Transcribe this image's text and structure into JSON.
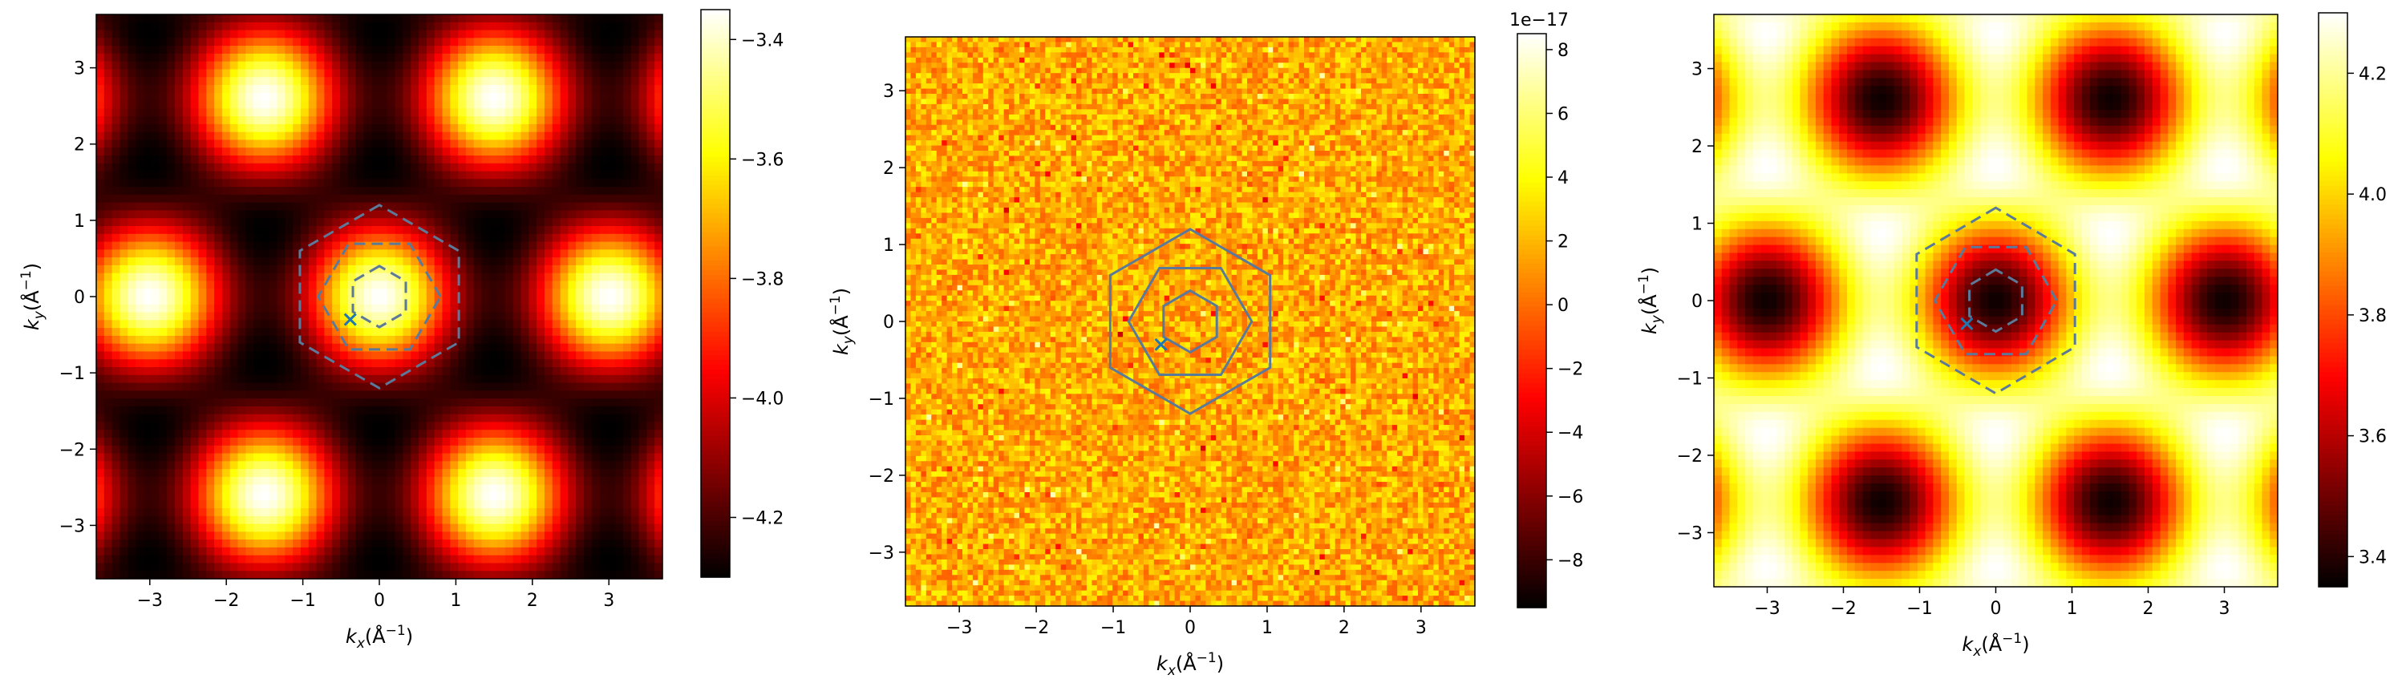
{
  "chart_data": [
    {
      "type": "heatmap",
      "panel": "left",
      "description_pattern": "hexagonal lattice of maxima",
      "xlabel": "k_x(Å^{-1})",
      "ylabel": "k_y(Å^{-1})",
      "xlim": [
        -3.7,
        3.7
      ],
      "ylim": [
        -3.7,
        3.7
      ],
      "x_ticks": [
        -3,
        -2,
        -1,
        0,
        1,
        2,
        3
      ],
      "y_ticks": [
        -3,
        -2,
        -1,
        0,
        1,
        2,
        3
      ],
      "colormap": "hot",
      "colorbar": {
        "range": [
          -4.3,
          -3.35
        ],
        "ticks": [
          -4.2,
          -4.0,
          -3.8,
          -3.6,
          -3.4
        ],
        "tick_labels": [
          "−4.2",
          "−4.0",
          "−3.8",
          "−3.6",
          "−3.4"
        ],
        "offset_text": ""
      },
      "field": {
        "kind": "lattice",
        "sign": 1
      },
      "overlays": {
        "inner_hexagon_radius": 0.4,
        "middle_hexagon_radius": 0.8,
        "outer_hexagon_radius": 1.2,
        "marker": {
          "symbol": "x",
          "x": -0.38,
          "y": -0.3
        }
      }
    },
    {
      "type": "heatmap",
      "panel": "middle",
      "description_pattern": "uniform numerical noise",
      "xlabel": "k_x(Å^{-1})",
      "ylabel": "k_y(Å^{-1})",
      "xlim": [
        -3.7,
        3.7
      ],
      "ylim": [
        -3.7,
        3.7
      ],
      "x_ticks": [
        -3,
        -2,
        -1,
        0,
        1,
        2,
        3
      ],
      "y_ticks": [
        -3,
        -2,
        -1,
        0,
        1,
        2,
        3
      ],
      "colormap": "hot",
      "colorbar": {
        "range": [
          -9.5,
          8.5
        ],
        "ticks": [
          -8,
          -6,
          -4,
          -2,
          0,
          2,
          4,
          6,
          8
        ],
        "tick_labels": [
          "−8",
          "−6",
          "−4",
          "−2",
          "0",
          "2",
          "4",
          "6",
          "8"
        ],
        "offset_text": "1e−17"
      },
      "field": {
        "kind": "noise"
      },
      "overlays": {
        "inner_hexagon_radius": 0.4,
        "middle_hexagon_radius": 0.8,
        "outer_hexagon_radius": 1.2,
        "marker": {
          "symbol": "x",
          "x": -0.38,
          "y": -0.3
        }
      }
    },
    {
      "type": "heatmap",
      "panel": "right",
      "description_pattern": "hexagonal lattice of minima",
      "xlabel": "k_x(Å^{-1})",
      "ylabel": "k_y(Å^{-1})",
      "xlim": [
        -3.7,
        3.7
      ],
      "ylim": [
        -3.7,
        3.7
      ],
      "x_ticks": [
        -3,
        -2,
        -1,
        0,
        1,
        2,
        3
      ],
      "y_ticks": [
        -3,
        -2,
        -1,
        0,
        1,
        2,
        3
      ],
      "colormap": "hot",
      "colorbar": {
        "range": [
          3.35,
          4.3
        ],
        "ticks": [
          3.4,
          3.6,
          3.8,
          4.0,
          4.2
        ],
        "tick_labels": [
          "3.4",
          "3.6",
          "3.8",
          "4.0",
          "4.2"
        ],
        "offset_text": ""
      },
      "field": {
        "kind": "lattice",
        "sign": -1
      },
      "overlays": {
        "inner_hexagon_radius": 0.4,
        "middle_hexagon_radius": 0.8,
        "outer_hexagon_radius": 1.2,
        "marker": {
          "symbol": "x",
          "x": -0.38,
          "y": -0.3
        }
      }
    }
  ],
  "colors": {
    "overlay_line": "#5b7a9a",
    "marker": "#1f77b4"
  }
}
